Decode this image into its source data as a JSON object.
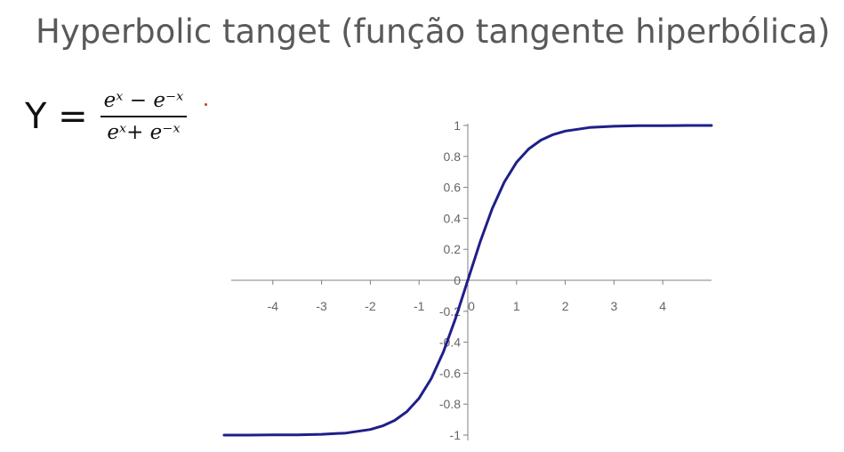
{
  "slide": {
    "title": "Hyperbolic tanget (função tangente hiperbólica)"
  },
  "formula": {
    "lhs": "Y =",
    "numerator": "eˣ − e⁻ˣ",
    "denominator": "eˣ+ e⁻ˣ"
  },
  "chart_data": {
    "type": "line",
    "title": "",
    "xlabel": "",
    "ylabel": "",
    "xlim": [
      -5,
      5
    ],
    "ylim": [
      -1,
      1
    ],
    "x_ticks": [
      -4,
      -3,
      -2,
      -1,
      0,
      1,
      2,
      3,
      4
    ],
    "x_tick_labels": [
      "-4",
      "-3",
      "-2",
      "-1",
      "0",
      "1",
      "2",
      "3",
      "4"
    ],
    "y_ticks": [
      -1,
      -0.8,
      -0.6,
      -0.4,
      -0.2,
      0,
      0.2,
      0.4,
      0.6,
      0.8,
      1
    ],
    "y_tick_labels": [
      "-1",
      "-0.8",
      "-0.6",
      "-0.4",
      "-0.2",
      "0",
      "0.2",
      "0.4",
      "0.6",
      "0.8",
      "1"
    ],
    "grid": false,
    "series": [
      {
        "color": "#1f1f8a",
        "x": [
          -5,
          -4.5,
          -4,
          -3.5,
          -3,
          -2.5,
          -2,
          -1.75,
          -1.5,
          -1.25,
          -1,
          -0.75,
          -0.5,
          -0.25,
          0,
          0.25,
          0.5,
          0.75,
          1,
          1.25,
          1.5,
          1.75,
          2,
          2.5,
          3,
          3.5,
          4,
          4.5,
          5
        ],
        "y": [
          -1,
          -1,
          -0.999,
          -0.998,
          -0.995,
          -0.987,
          -0.964,
          -0.941,
          -0.905,
          -0.848,
          -0.762,
          -0.635,
          -0.462,
          -0.245,
          0,
          0.245,
          0.462,
          0.635,
          0.762,
          0.848,
          0.905,
          0.941,
          0.964,
          0.987,
          0.995,
          0.998,
          0.999,
          1,
          1
        ]
      }
    ]
  }
}
